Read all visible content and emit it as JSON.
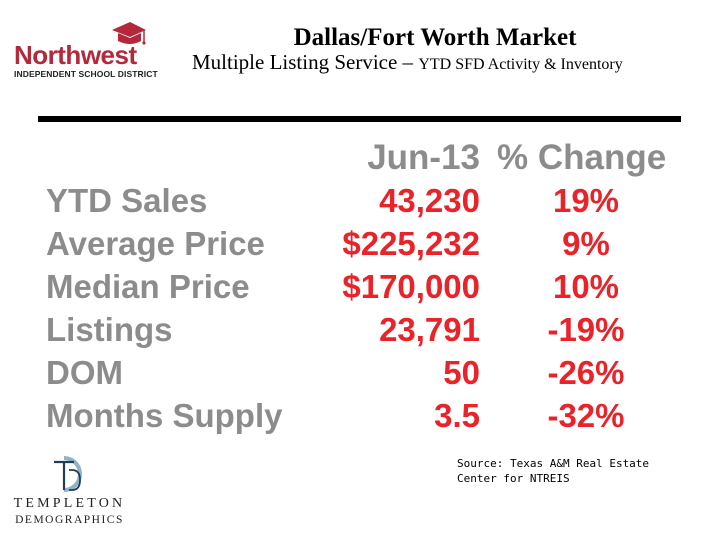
{
  "logo": {
    "name": "Northwest",
    "subtitle": "INDEPENDENT SCHOOL DISTRICT",
    "icon": "graduation-cap-icon",
    "color": "#b3283a"
  },
  "title": "Dallas/Fort Worth Market",
  "subtitle_main": "Multiple Listing Service – ",
  "subtitle_small": "YTD SFD Activity & Inventory",
  "table": {
    "period_header": "Jun-13",
    "change_header": "% Change",
    "header_color": "#8c8c8c",
    "value_color": "#e8232a",
    "rows": [
      {
        "label": "YTD Sales",
        "value": "43,230",
        "change": "19%"
      },
      {
        "label": "Average Price",
        "value": "$225,232",
        "change": "9%"
      },
      {
        "label": "Median Price",
        "value": "$170,000",
        "change": "10%"
      },
      {
        "label": "Listings",
        "value": "23,791",
        "change": "-19%"
      },
      {
        "label": "DOM",
        "value": "50",
        "change": "-26%"
      },
      {
        "label": "Months Supply",
        "value": "3.5",
        "change": "-32%"
      }
    ]
  },
  "source": "Source: Texas A&M Real Estate Center for NTREIS",
  "templeton": {
    "name": "TEMPLETON",
    "sub": "DEMOGRAPHICS",
    "icon": "td-monogram-icon"
  }
}
